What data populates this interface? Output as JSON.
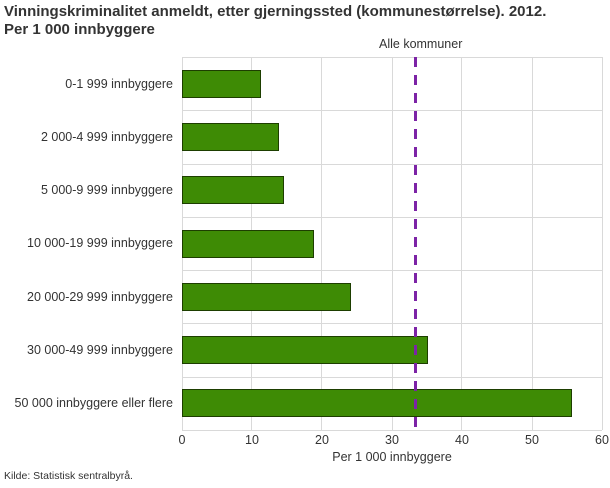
{
  "chart_data": {
    "type": "bar",
    "orientation": "horizontal",
    "title": "Vinningskriminalitet anmeldt, etter gjerningssted (kommunestørrelse). 2012.\nPer 1 000 innbyggere",
    "categories": [
      "0-1 999 innbyggere",
      "2 000-4 999 innbyggere",
      "5 000-9 999 innbyggere",
      "10 000-19 999 innbyggere",
      "20 000-29 999 innbyggere",
      "30 000-49 999 innbyggere",
      "50 000 innbyggere eller flere"
    ],
    "values": [
      11.3,
      13.9,
      14.6,
      18.8,
      24.1,
      35.1,
      55.7
    ],
    "xlabel": "Per 1 000 innbyggere",
    "xlim": [
      0,
      60
    ],
    "xticks": [
      0,
      10,
      20,
      30,
      40,
      50,
      60
    ],
    "grid": true,
    "legend": "none",
    "reference_line": {
      "label": "Alle kommuner",
      "value": 33.4,
      "style": "dashed"
    },
    "colors": {
      "bar_fill": "#3e8b05",
      "bar_border": "#1d3e00",
      "reference_line": "#7c23a6",
      "gridline": "#d9d9d9",
      "text": "#333333"
    },
    "source": "Kilde: Statistisk sentralbyrå."
  }
}
